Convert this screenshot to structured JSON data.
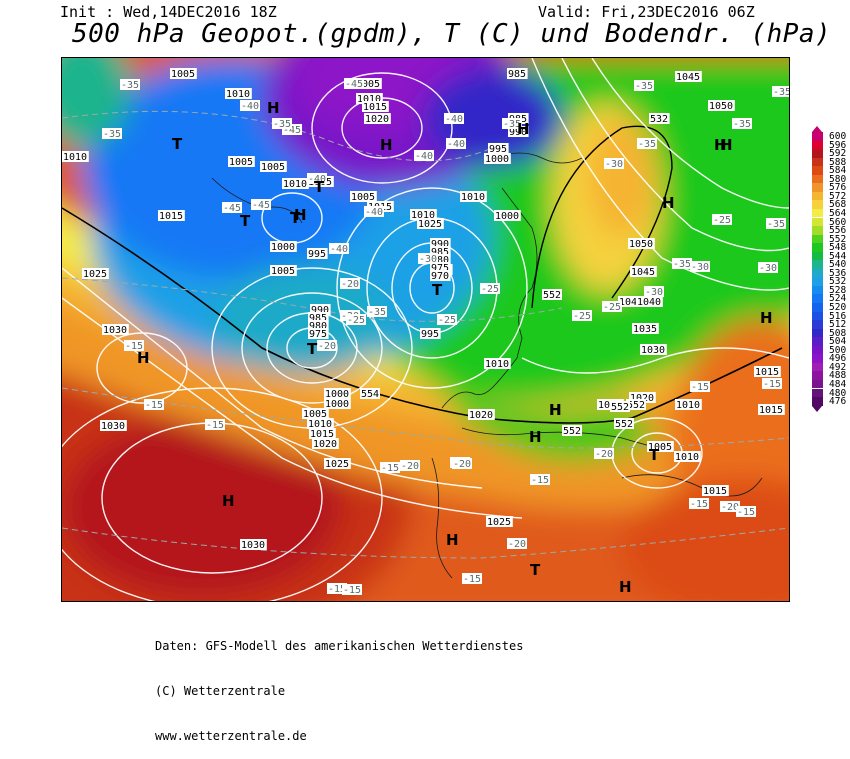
{
  "header": {
    "init": "Init : Wed,14DEC2016 18Z",
    "valid": "Valid: Fri,23DEC2016 06Z",
    "title": "500 hPa Geopot.(gpdm), T (C) und Bodendr. (hPa)"
  },
  "legend": {
    "unit": "gpdm",
    "levels": [
      600,
      596,
      592,
      588,
      584,
      580,
      576,
      572,
      568,
      564,
      560,
      556,
      552,
      548,
      544,
      540,
      536,
      532,
      528,
      524,
      520,
      516,
      512,
      508,
      504,
      500,
      496,
      492,
      488,
      484,
      480,
      476
    ],
    "colors": [
      "#c8006e",
      "#e00030",
      "#b4141e",
      "#c83218",
      "#dc4b14",
      "#eb6e1e",
      "#f09628",
      "#f5b432",
      "#f5d23c",
      "#f5eb46",
      "#d2e632",
      "#a0dc28",
      "#50d21e",
      "#1ec81e",
      "#14bc46",
      "#1eb48c",
      "#1eaac8",
      "#1ea0e6",
      "#148cf0",
      "#1478f5",
      "#1464f0",
      "#1e50e6",
      "#2a3cd8",
      "#3228c8",
      "#5a1ec8",
      "#7814c8",
      "#8c14c8",
      "#a01eb4",
      "#8c14a0",
      "#78148c",
      "#641478",
      "#500a64"
    ]
  },
  "pressure_labels": [
    "1005",
    "985",
    "1010",
    "1005",
    "1010",
    "1015",
    "1020",
    "1005",
    "1000",
    "995",
    "985",
    "990",
    "1045",
    "1050",
    "532",
    "1010",
    "1005",
    "1005",
    "1010",
    "1005",
    "1015",
    "1010",
    "1010",
    "1015",
    "1025",
    "1040",
    "1000",
    "995",
    "1000",
    "1005",
    "995",
    "990",
    "985",
    "980",
    "975",
    "970",
    "1050",
    "1045",
    "1040",
    "1035",
    "1030",
    "1030",
    "990",
    "985",
    "980",
    "975",
    "995",
    "1010",
    "1000",
    "1000",
    "1005",
    "1010",
    "1015",
    "1020",
    "1025",
    "1020",
    "1015",
    "1010",
    "1015",
    "1020",
    "1005",
    "1010",
    "1015",
    "1025",
    "1030",
    "1015",
    "1030",
    "1025"
  ],
  "geopot_labels": [
    "552",
    "552",
    "552",
    "552",
    "552",
    "554"
  ],
  "temperature_labels": [
    "-35",
    "-40",
    "-45",
    "-35",
    "-35",
    "-40",
    "-40",
    "-35",
    "-35",
    "-35",
    "-45",
    "-45",
    "-40",
    "-40",
    "-45",
    "-40",
    "-40",
    "-35",
    "-30",
    "-35",
    "-30",
    "-25",
    "-25",
    "-35",
    "-35",
    "-30",
    "-30",
    "-25",
    "-25",
    "-20",
    "-20",
    "-20",
    "-30",
    "-35",
    "-25",
    "-25",
    "-15",
    "-15",
    "-15",
    "-15",
    "-15",
    "-15",
    "-15",
    "-20",
    "-20",
    "-20",
    "-20",
    "-15",
    "-20",
    "-15",
    "-15",
    "-15",
    "-15",
    "-15"
  ],
  "centers": [
    "H",
    "H",
    "T",
    "H",
    "T",
    "T",
    "H",
    "T",
    "T",
    "T",
    "T",
    "H",
    "H",
    "H",
    "H",
    "H",
    "H",
    "H",
    "T",
    "H",
    "H",
    "H",
    "H"
  ],
  "footer": {
    "line1": "Daten: GFS-Modell des amerikanischen Wetterdienstes",
    "line2": "(C) Wetterzentrale",
    "line3": "www.wetterzentrale.de"
  }
}
